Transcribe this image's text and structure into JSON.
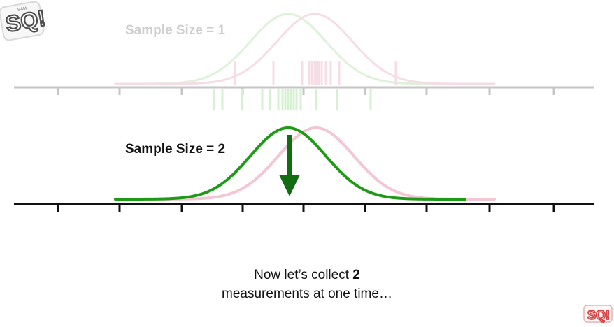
{
  "panels": {
    "top": {
      "title": "Sample Size = 1",
      "measurements_pink": [
        336,
        391,
        432,
        442,
        446,
        450,
        453,
        456,
        460,
        466,
        473,
        485,
        566
      ],
      "measurements_green": [
        306,
        318,
        346,
        375,
        386,
        398,
        404,
        408,
        412,
        416,
        420,
        424,
        430,
        452,
        482,
        530
      ]
    },
    "bottom": {
      "title": "Sample Size = 2"
    }
  },
  "caption": {
    "line1_prefix": "Now let’s collect ",
    "line1_bold": "2",
    "line2": "measurements at one time…"
  },
  "colors": {
    "green": "#1f9a17",
    "dark_green": "#126c11",
    "pink": "#f3c6d3",
    "faded_green": "#d6f0d2",
    "faded_pink": "#f6dde5",
    "axis": "#111111",
    "faded_axis": "#c6c6c6"
  },
  "icons": {
    "top_logo": "statquest-logo-icon",
    "bottom_logo": "statquest-small-logo-icon",
    "arrow": "down-arrow-icon"
  }
}
